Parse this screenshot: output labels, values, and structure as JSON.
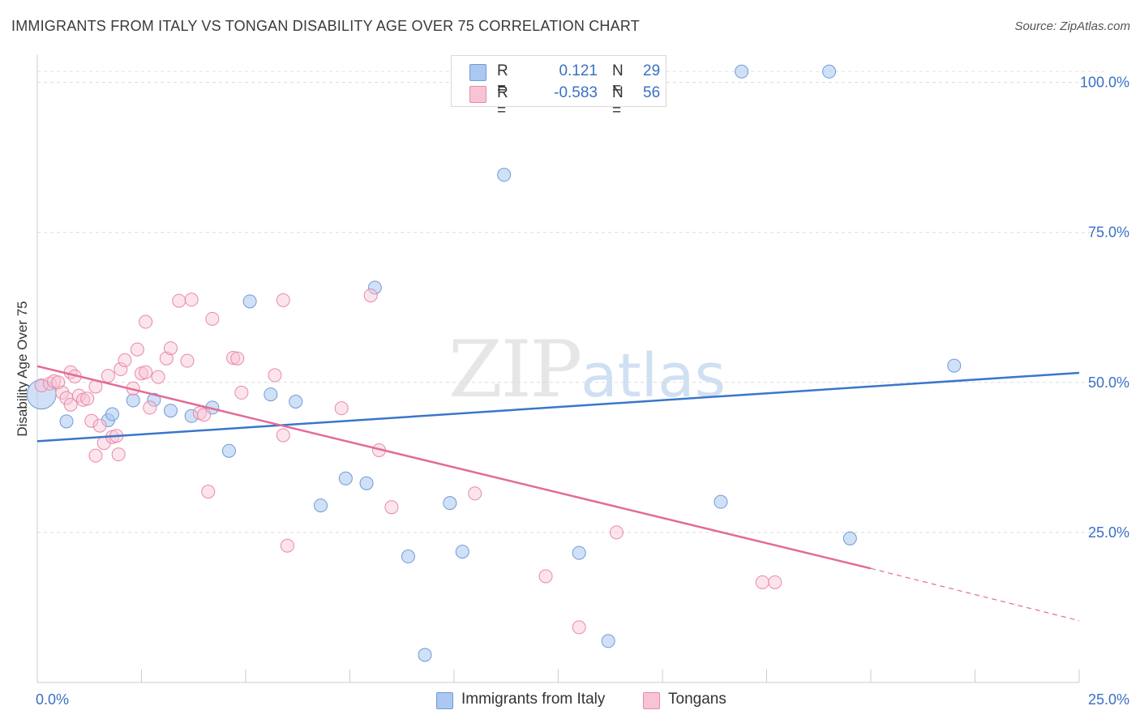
{
  "header": {
    "title": "IMMIGRANTS FROM ITALY VS TONGAN DISABILITY AGE OVER 75 CORRELATION CHART",
    "source": "Source: ZipAtlas.com"
  },
  "watermark": {
    "zip": "ZIP",
    "atlas": "atlas"
  },
  "legend": {
    "rows": [
      {
        "r_label": "R =",
        "r_value": "0.121",
        "n_label": "N =",
        "n_value": "29",
        "color": "#aac8f0",
        "border": "#6f9ad8"
      },
      {
        "r_label": "R =",
        "r_value": "-0.583",
        "n_label": "N =",
        "n_value": "56",
        "color": "#f8c4d4",
        "border": "#e889a8"
      }
    ]
  },
  "bottom_legend": {
    "italy": "Immigrants from Italy",
    "tongans": "Tongans"
  },
  "chart_data": {
    "type": "scatter",
    "title": "IMMIGRANTS FROM ITALY VS TONGAN DISABILITY AGE OVER 75 CORRELATION CHART",
    "ylabel": "Disability Age Over 75",
    "xlabel": "",
    "xlim": [
      0,
      25
    ],
    "ylim": [
      0,
      104
    ],
    "x_tick_labels": [
      "0.0%",
      "25.0%"
    ],
    "y_ticks": [
      25,
      50,
      75,
      100
    ],
    "y_tick_labels": [
      "25.0%",
      "50.0%",
      "75.0%",
      "100.0%"
    ],
    "grid": true,
    "legend_position": "top-center",
    "colors": {
      "italy": "#3a76cc",
      "tongans": "#e26b98",
      "tick_label": "#3b70c4"
    },
    "series": [
      {
        "name": "Immigrants from Italy",
        "color": "#aac8f0",
        "edge": "#6f9ad8",
        "trend": {
          "x": [
            0,
            25
          ],
          "y": [
            40.2,
            51.6
          ],
          "color": "#3a76cc"
        },
        "points": [
          [
            0.1,
            48.0
          ],
          [
            0.7,
            43.5
          ],
          [
            1.7,
            43.7
          ],
          [
            1.8,
            44.7
          ],
          [
            2.3,
            47.0
          ],
          [
            2.8,
            47.1
          ],
          [
            3.2,
            45.3
          ],
          [
            3.7,
            44.4
          ],
          [
            4.2,
            45.8
          ],
          [
            4.6,
            38.6
          ],
          [
            5.1,
            63.5
          ],
          [
            5.6,
            48.0
          ],
          [
            6.2,
            46.8
          ],
          [
            6.8,
            29.5
          ],
          [
            7.4,
            34.0
          ],
          [
            7.9,
            33.2
          ],
          [
            8.1,
            65.8
          ],
          [
            8.9,
            21.0
          ],
          [
            9.3,
            4.6
          ],
          [
            9.9,
            29.9
          ],
          [
            10.2,
            21.8
          ],
          [
            11.2,
            84.6
          ],
          [
            13.0,
            21.6
          ],
          [
            13.7,
            6.9
          ],
          [
            16.4,
            30.1
          ],
          [
            16.9,
            101.8
          ],
          [
            19.0,
            101.8
          ],
          [
            19.5,
            24.0
          ],
          [
            22.0,
            52.8
          ]
        ]
      },
      {
        "name": "Tongans",
        "color": "#f8c4d4",
        "edge": "#e889a8",
        "trend": {
          "x": [
            0,
            20
          ],
          "y": [
            52.7,
            19.0
          ],
          "dash_x": [
            20,
            25
          ],
          "dash_y": [
            19.0,
            10.3
          ],
          "color": "#e26b98"
        },
        "points": [
          [
            0.1,
            49.5
          ],
          [
            0.3,
            49.8
          ],
          [
            0.4,
            50.2
          ],
          [
            0.5,
            50.0
          ],
          [
            0.6,
            48.3
          ],
          [
            0.7,
            47.4
          ],
          [
            0.8,
            51.7
          ],
          [
            0.8,
            46.3
          ],
          [
            0.9,
            51.0
          ],
          [
            1.0,
            47.8
          ],
          [
            1.1,
            47.1
          ],
          [
            1.2,
            47.3
          ],
          [
            1.3,
            43.6
          ],
          [
            1.4,
            37.8
          ],
          [
            1.4,
            49.3
          ],
          [
            1.5,
            42.8
          ],
          [
            1.6,
            39.9
          ],
          [
            1.7,
            51.1
          ],
          [
            1.8,
            40.9
          ],
          [
            1.9,
            41.1
          ],
          [
            1.95,
            38.0
          ],
          [
            2.0,
            52.2
          ],
          [
            2.1,
            53.7
          ],
          [
            2.3,
            49.0
          ],
          [
            2.4,
            55.5
          ],
          [
            2.5,
            51.5
          ],
          [
            2.6,
            51.7
          ],
          [
            2.6,
            60.1
          ],
          [
            2.7,
            45.8
          ],
          [
            2.9,
            50.9
          ],
          [
            3.1,
            54.0
          ],
          [
            3.2,
            55.7
          ],
          [
            3.4,
            63.6
          ],
          [
            3.6,
            53.6
          ],
          [
            3.7,
            63.8
          ],
          [
            3.9,
            44.9
          ],
          [
            4.0,
            44.6
          ],
          [
            4.1,
            31.8
          ],
          [
            4.2,
            60.6
          ],
          [
            4.7,
            54.1
          ],
          [
            4.8,
            54.0
          ],
          [
            4.9,
            48.3
          ],
          [
            5.7,
            51.2
          ],
          [
            5.9,
            41.2
          ],
          [
            5.9,
            63.7
          ],
          [
            6.0,
            22.8
          ],
          [
            7.3,
            45.7
          ],
          [
            8.0,
            64.5
          ],
          [
            8.2,
            38.7
          ],
          [
            8.5,
            29.2
          ],
          [
            10.5,
            31.5
          ],
          [
            12.2,
            17.7
          ],
          [
            13.0,
            9.2
          ],
          [
            13.9,
            25.0
          ],
          [
            17.4,
            16.7
          ],
          [
            17.7,
            16.7
          ]
        ]
      }
    ]
  }
}
